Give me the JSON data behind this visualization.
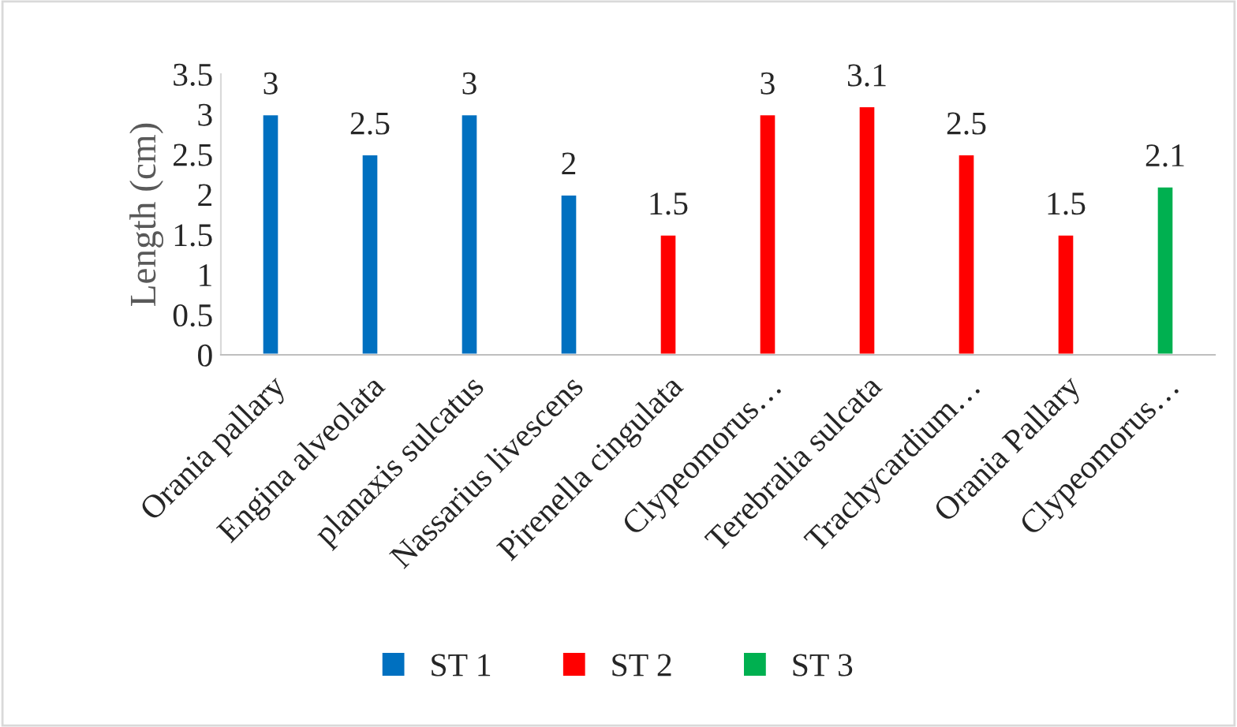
{
  "chart_data": {
    "type": "bar",
    "ylabel": "Length (cm)",
    "categories": [
      "Orania pallary",
      "Engina alveolata",
      "planaxis sulcatus",
      "Nassarius livescens",
      "Pirenella cingulata",
      "Clypeomorus…",
      "Terebralia sulcata",
      "Trachycardium…",
      "Orania Pallary",
      "Clypeomorus…"
    ],
    "series": [
      {
        "name": "ST 1",
        "color": "#0070c0",
        "values": [
          3,
          2.5,
          3,
          2,
          null,
          null,
          null,
          null,
          null,
          null
        ]
      },
      {
        "name": "ST 2",
        "color": "#ff0000",
        "values": [
          null,
          null,
          null,
          null,
          1.5,
          3,
          3.1,
          2.5,
          1.5,
          null
        ]
      },
      {
        "name": "ST 3",
        "color": "#00b050",
        "values": [
          null,
          null,
          null,
          null,
          null,
          null,
          null,
          null,
          null,
          2.1
        ]
      }
    ],
    "ylim": [
      0,
      3.5
    ],
    "yticks": [
      0,
      0.5,
      1,
      1.5,
      2,
      2.5,
      3,
      3.5
    ],
    "data_labels": true,
    "grid": false,
    "legend": "bottom"
  }
}
